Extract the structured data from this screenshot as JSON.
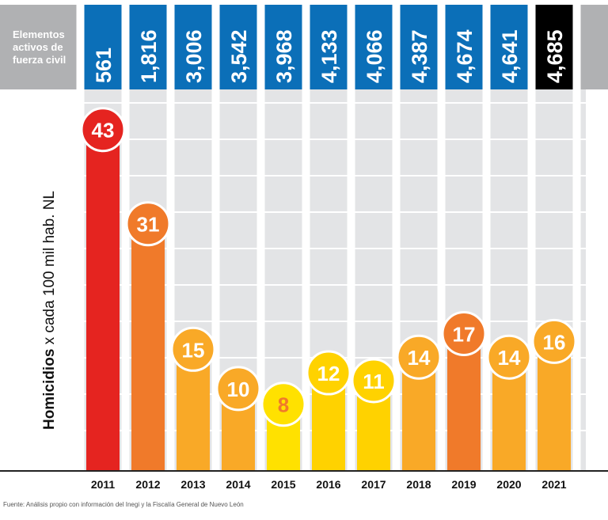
{
  "chart_data": {
    "type": "bar",
    "categories": [
      "2011",
      "2012",
      "2013",
      "2014",
      "2015",
      "2016",
      "2017",
      "2018",
      "2019",
      "2020",
      "2021"
    ],
    "values": [
      43,
      31,
      15,
      10,
      8,
      12,
      11,
      14,
      17,
      14,
      16
    ],
    "ylabel_bold": "Homicidios",
    "ylabel_rest": " x cada 100 mil hab. NL",
    "ylim": [
      0,
      46
    ],
    "header_label": [
      "Elementos",
      "activos de",
      "fuerza civil"
    ],
    "elements": [
      "561",
      "1,816",
      "3,006",
      "3,542",
      "3,968",
      "4,133",
      "4,066",
      "4,387",
      "4,674",
      "4,641",
      "4,685"
    ],
    "bar_colors": [
      "#e52420",
      "#f07a2a",
      "#f9a927",
      "#f9a927",
      "#ffe100",
      "#ffd200",
      "#ffd200",
      "#f9a927",
      "#f07a2a",
      "#f9a927",
      "#f9a927"
    ],
    "circle_colors": [
      "#e52420",
      "#f07a2a",
      "#f9a927",
      "#f9a927",
      "#ffe100",
      "#ffd200",
      "#ffd200",
      "#f9a927",
      "#f07a2a",
      "#f9a927",
      "#f9a927"
    ],
    "label_colors": [
      "#ffffff",
      "#ffffff",
      "#ffffff",
      "#ffffff",
      "#f07a2a",
      "#ffffff",
      "#ffffff",
      "#ffffff",
      "#ffffff",
      "#ffffff",
      "#ffffff"
    ],
    "header_colors": [
      "#0b6fb8",
      "#0b6fb8",
      "#0b6fb8",
      "#0b6fb8",
      "#0b6fb8",
      "#0b6fb8",
      "#0b6fb8",
      "#0b6fb8",
      "#0b6fb8",
      "#0b6fb8",
      "#000000"
    ],
    "grid": true
  },
  "source": "Fuente: Análisis propio con información del Inegi y la Fiscalía General de Nuevo León"
}
